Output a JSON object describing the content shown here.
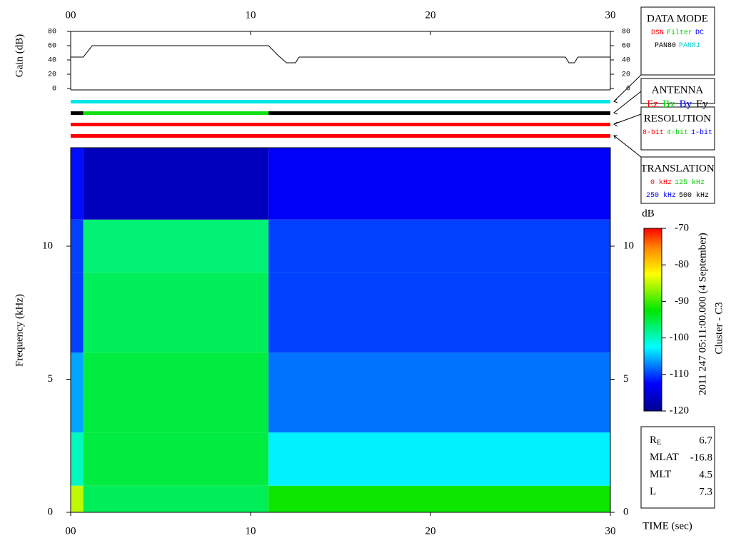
{
  "chart_data": [
    {
      "type": "line",
      "ylabel": "Gain (dB)",
      "color": "#000000",
      "x": [
        0,
        0.7,
        1.2,
        11,
        11.5,
        12,
        12.5,
        12.7,
        27.5,
        27.7,
        28,
        28.2,
        30
      ],
      "values": [
        44,
        44,
        60,
        60,
        47,
        36,
        36,
        44,
        44,
        36,
        36,
        44,
        44
      ],
      "xlim": [
        0,
        30
      ],
      "xticks": [
        {
          "value": 0,
          "label": "00"
        },
        10,
        20,
        30
      ],
      "ylim": [
        0,
        80
      ],
      "yticks": [
        0,
        20,
        40,
        60,
        80
      ]
    },
    {
      "type": "timeline",
      "xlim": [
        0,
        30
      ],
      "rows": [
        {
          "segments": [
            {
              "start": 0,
              "end": 30,
              "color": "#00e8e8"
            }
          ]
        },
        {
          "segments": [
            {
              "start": 0,
              "end": 0.7,
              "color": "#000000"
            },
            {
              "start": 0.7,
              "end": 11,
              "color": "#10e010"
            },
            {
              "start": 11,
              "end": 30,
              "color": "#000000"
            }
          ]
        },
        {
          "segments": [
            {
              "start": 0,
              "end": 30,
              "color": "#ff0000"
            }
          ]
        },
        {
          "segments": [
            {
              "start": 0,
              "end": 30,
              "color": "#ff0000"
            }
          ]
        }
      ]
    },
    {
      "type": "heatmap",
      "xlabel": "TIME (sec)",
      "ylabel": "Frequency (kHz)",
      "colormap": "jet",
      "xbins": [
        0,
        0.7,
        11,
        30
      ],
      "ybins": [
        0,
        1,
        3,
        6,
        9,
        11,
        13.7
      ],
      "values": [
        [
          -85,
          -96,
          -92
        ],
        [
          -100,
          -95,
          -103
        ],
        [
          -106,
          -95,
          -108
        ],
        [
          -110,
          -96,
          -110
        ],
        [
          -110,
          -97,
          -110
        ],
        [
          -112,
          -117,
          -113
        ]
      ],
      "xlim": [
        0,
        30
      ],
      "xticks": [
        {
          "value": 0,
          "label": "00"
        },
        10,
        20,
        30
      ],
      "ylim": [
        0,
        13.7
      ],
      "yticks": [
        0,
        5,
        10
      ],
      "colorbar": {
        "label": "dB",
        "clim": [
          -120,
          -70
        ],
        "cticks": [
          -70,
          -80,
          -90,
          -100,
          -110,
          -120
        ]
      }
    }
  ],
  "legend_boxes": [
    {
      "title": "DATA MODE",
      "rows": [
        [
          {
            "text": "DSN",
            "color": "#ff0000"
          },
          {
            "text": "Filter",
            "color": "#00cc00"
          },
          {
            "text": "DC",
            "color": "#0000ff"
          }
        ],
        [
          {
            "text": "PAN80",
            "color": "#000000"
          },
          {
            "text": "PAN81",
            "color": "#00d0d0"
          }
        ]
      ]
    },
    {
      "title": "ANTENNA",
      "rows": [
        [
          {
            "text": "Ez",
            "color": "#ff0000"
          },
          {
            "text": "Bx",
            "color": "#00cc00"
          },
          {
            "text": "By",
            "color": "#0000ff"
          },
          {
            "text": "Ey",
            "color": "#000000"
          }
        ]
      ]
    },
    {
      "title": "RESOLUTION",
      "rows": [
        [
          {
            "text": "8-bit",
            "color": "#ff0000"
          },
          {
            "text": "4-bit",
            "color": "#00cc00"
          },
          {
            "text": "1-bit",
            "color": "#0000ff"
          }
        ]
      ]
    },
    {
      "title": "TRANSLATION",
      "rows": [
        [
          {
            "text": "0 kHz",
            "color": "#ff0000"
          },
          {
            "text": "125 kHz",
            "color": "#00cc00"
          }
        ],
        [
          {
            "text": "250 kHz",
            "color": "#0000ff"
          },
          {
            "text": "500 kHz",
            "color": "#000000"
          }
        ]
      ]
    }
  ],
  "info": {
    "rows": [
      {
        "label": "R",
        "sub": "E",
        "value": 6.7
      },
      {
        "label": "MLAT",
        "value": -16.8
      },
      {
        "label": "MLT",
        "value": 4.5
      },
      {
        "label": "L",
        "value": 7.3
      }
    ]
  },
  "caption": [
    "2011 247 05:11:00.000 (4 September)",
    "Cluster - C3"
  ]
}
